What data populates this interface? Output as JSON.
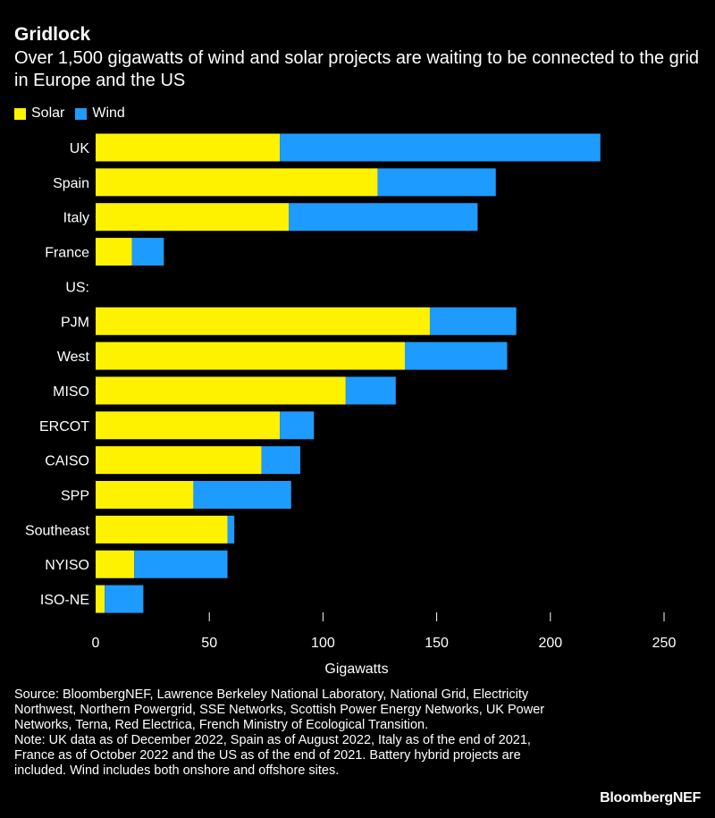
{
  "header": {
    "title": "Gridlock",
    "subtitle": "Over 1,500 gigawatts of wind and solar projects are waiting to be connected to the grid in Europe and the US"
  },
  "colors": {
    "solar": "#FFF200",
    "wind": "#1E9BFF",
    "background": "#000000",
    "text": "#FFFFFF"
  },
  "chart_data": {
    "type": "bar",
    "orientation": "horizontal",
    "stacked": true,
    "categories": [
      "UK",
      "Spain",
      "Italy",
      "France",
      "US:",
      "PJM",
      "West",
      "MISO",
      "ERCOT",
      "CAISO",
      "SPP",
      "Southeast",
      "NYISO",
      "ISO-NE"
    ],
    "series": [
      {
        "name": "Solar",
        "values": [
          81,
          124,
          85,
          16,
          null,
          147,
          136,
          110,
          81,
          73,
          43,
          58,
          17,
          4
        ]
      },
      {
        "name": "Wind",
        "values": [
          141,
          52,
          83,
          14,
          null,
          38,
          45,
          22,
          15,
          17,
          43,
          3,
          41,
          17
        ]
      }
    ],
    "xlabel": "Gigawatts",
    "ylabel": "",
    "xlim": [
      0,
      250
    ],
    "xticks": [
      "0",
      "50",
      "100",
      "150",
      "200",
      "250"
    ],
    "legend_position": "top-left",
    "grid": false
  },
  "footnotes": {
    "source": "Source: BloombergNEF, Lawrence Berkeley National Laboratory, National Grid, Electricity Northwest, Northern Powergrid, SSE Networks, Scottish Power Energy Networks, UK Power Networks, Terna, Red Electrica, French Ministry of Ecological Transition.",
    "note": "Note: UK data as of December 2022, Spain as of August 2022, Italy as of the end of 2021, France as of October 2022 and the US as of the end of 2021. Battery hybrid projects are included. Wind includes both onshore and offshore sites."
  },
  "brand": "BloombergNEF"
}
